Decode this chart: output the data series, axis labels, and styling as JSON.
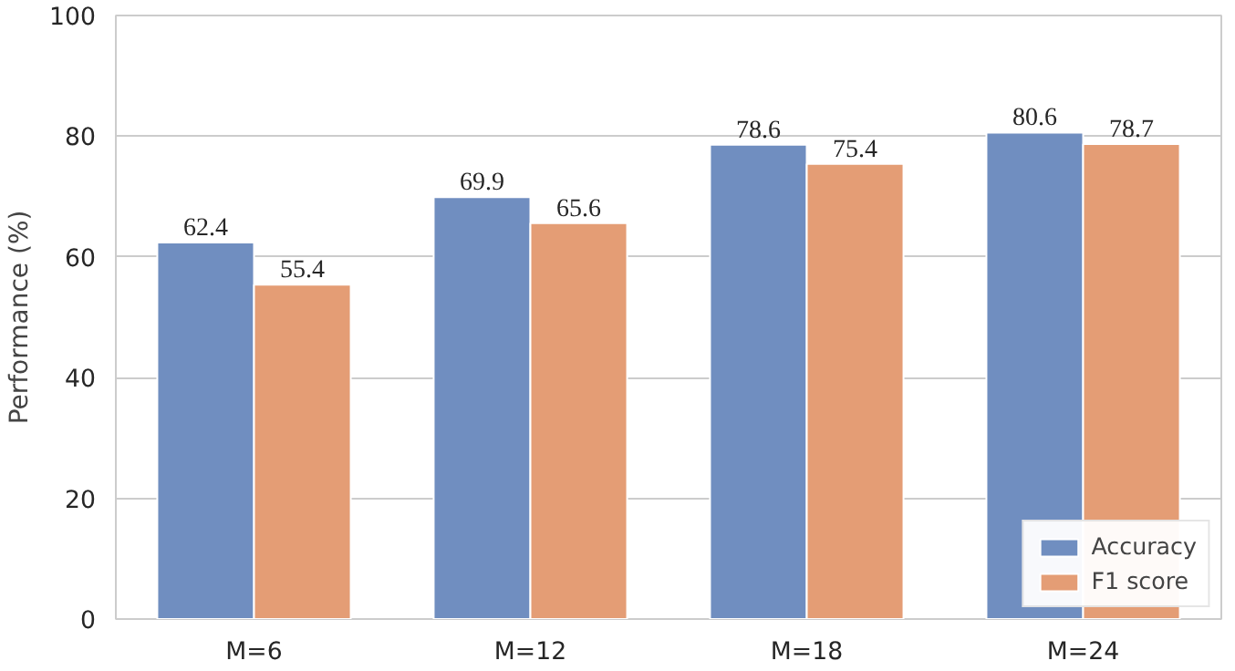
{
  "chart_data": {
    "type": "bar",
    "ylabel": "Performance (%)",
    "categories": [
      "M=6",
      "M=12",
      "M=18",
      "M=24"
    ],
    "series": [
      {
        "name": "Accuracy",
        "color": "#708ec0",
        "values": [
          62.4,
          69.9,
          78.6,
          80.6
        ]
      },
      {
        "name": "F1 score",
        "color": "#e49d75",
        "values": [
          55.4,
          65.6,
          75.4,
          78.7
        ]
      }
    ],
    "ylim": [
      0,
      100
    ],
    "yticks": [
      0,
      20,
      40,
      60,
      80,
      100
    ],
    "grid": "y",
    "legend": "bottom right",
    "data_labels": true
  }
}
